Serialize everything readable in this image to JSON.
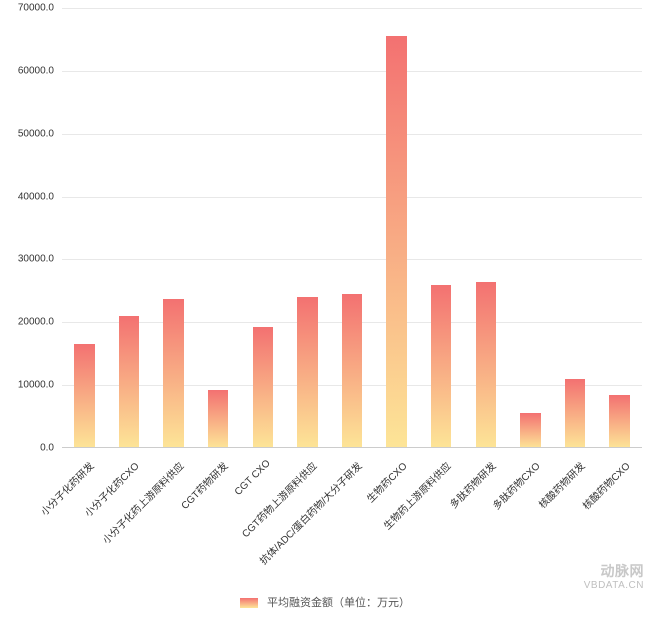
{
  "chart": {
    "type": "bar",
    "ylim": [
      0,
      70000
    ],
    "ytick_step": 10000,
    "ytick_format_decimals": 1,
    "background_color": "#ffffff",
    "grid_color": "#e8e8e8",
    "axis_color": "#cccccc",
    "tick_font_color": "#333333",
    "tick_fontsize": 10,
    "bar_width_ratio": 0.46,
    "bar_gradient_top": "#f37171",
    "bar_gradient_bottom": "#fde597",
    "xlabel_rotation_deg": -45,
    "categories": [
      "小分子化药研发",
      "小分子化药CXO",
      "小分子化药上游原料供应",
      "CGT药物研发",
      "CGT CXO",
      "CGT药物上游原料供应",
      "抗体/ADC/蛋白药物/大分子研发",
      "生物药CXO",
      "生物药上游原料供应",
      "多肽药物研发",
      "多肽药物CXO",
      "核酸药物研发",
      "核酸药物CXO"
    ],
    "values": [
      16500,
      21000,
      23700,
      9200,
      19200,
      24000,
      24500,
      65500,
      26000,
      26400,
      5600,
      11000,
      8400
    ]
  },
  "legend": {
    "label": "平均融资金额（单位：万元）",
    "swatch_top": "#f37171",
    "swatch_bottom": "#fde597"
  },
  "watermark": {
    "line1": "动脉网",
    "line2": "VBDATA.CN",
    "color": "#c8c8c8"
  }
}
